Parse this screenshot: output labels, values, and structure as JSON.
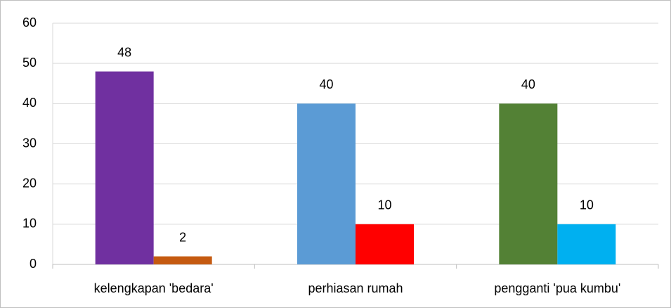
{
  "chart_data": {
    "type": "bar",
    "categories": [
      "kelengkapan 'bedara'",
      "perhiasan rumah",
      "pengganti 'pua kumbu'"
    ],
    "series": [
      {
        "values": [
          48,
          40,
          40
        ],
        "colors": [
          "#7030a0",
          "#5b9bd5",
          "#538135"
        ]
      },
      {
        "values": [
          2,
          10,
          10
        ],
        "colors": [
          "#c55a11",
          "#ff0000",
          "#00b0f0"
        ]
      }
    ],
    "ylim": [
      0,
      60
    ],
    "yticks": [
      0,
      10,
      20,
      30,
      40,
      50,
      60
    ],
    "grid": true,
    "data_labels": true
  }
}
